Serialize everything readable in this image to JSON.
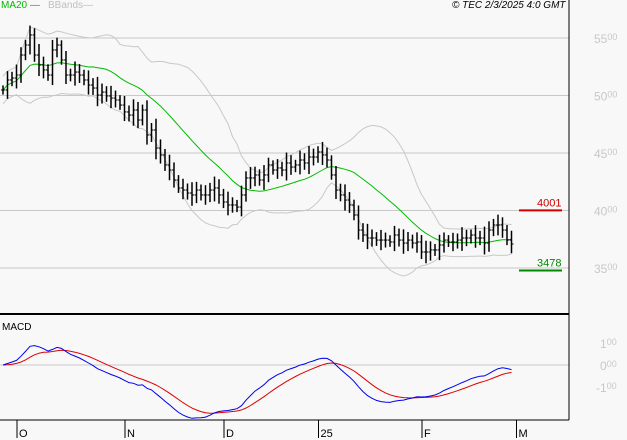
{
  "legend": {
    "ma_label": "MA20",
    "bb_label": "BBands",
    "ma_color": "#00bb00",
    "bb_color": "#c8c8c8"
  },
  "copyright": "© TEC 2/3/2025 4:0 GMT",
  "chart_data": {
    "type": "ohlc-bar",
    "grid": true,
    "price_ylim": [
      3100,
      5850
    ],
    "price_ticks": [
      5500,
      5000,
      4500,
      4000,
      3500
    ],
    "x_tick_labels": [
      "O",
      "N",
      "D",
      "25",
      "F",
      "M"
    ],
    "x_tick_index": [
      4,
      28,
      50,
      71,
      94,
      115
    ],
    "closes": [
      5048,
      5135,
      5152,
      5178,
      5352,
      5439,
      5526,
      5352,
      5265,
      5222,
      5178,
      5396,
      5439,
      5309,
      5178,
      5178,
      5204,
      5178,
      5135,
      5091,
      5065,
      5004,
      5030,
      4996,
      4978,
      4961,
      4917,
      4857,
      4830,
      4874,
      4787,
      4874,
      4657,
      4700,
      4543,
      4483,
      4396,
      4352,
      4265,
      4196,
      4178,
      4152,
      4135,
      4178,
      4135,
      4135,
      4178,
      4196,
      4135,
      4074,
      4048,
      4048,
      4030,
      4135,
      4283,
      4283,
      4309,
      4265,
      4309,
      4396,
      4352,
      4370,
      4352,
      4413,
      4378,
      4396,
      4439,
      4413,
      4465,
      4465,
      4509,
      4483,
      4439,
      4309,
      4178,
      4135,
      4091,
      4048,
      3961,
      3830,
      3787,
      3761,
      3761,
      3743,
      3743,
      3743,
      3726,
      3787,
      3743,
      3717,
      3743,
      3717,
      3726,
      3639,
      3639,
      3657,
      3657,
      3700,
      3743,
      3726,
      3726,
      3743,
      3761,
      3761,
      3787,
      3761,
      3761,
      3717,
      3830,
      3874,
      3874,
      3830,
      3743,
      3709
    ],
    "resistance": {
      "value": 4001,
      "label": "4001",
      "color": "#cc0000"
    },
    "support": {
      "value": 3478,
      "label": "3478",
      "color": "#008800"
    },
    "macd": {
      "label": "MACD",
      "ticks": [
        100,
        0,
        -100
      ],
      "tick_labels": [
        "100",
        "000",
        "-100"
      ],
      "macd_color": "#0000ee",
      "signal_color": "#dd0000"
    }
  }
}
